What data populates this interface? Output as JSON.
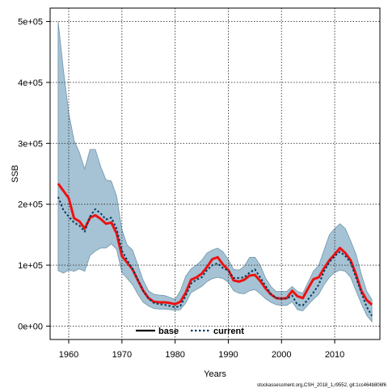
{
  "chart_data": {
    "type": "line",
    "title": "",
    "xlabel": "Years",
    "ylabel": "SSB",
    "xlim": [
      1956.5,
      2018.5
    ],
    "ylim": [
      -22000,
      522000
    ],
    "grid": true,
    "x_ticks": [
      1960,
      1970,
      1980,
      1990,
      2000,
      2010
    ],
    "x_tick_labels": [
      "1960",
      "1970",
      "1980",
      "1990",
      "2000",
      "2010"
    ],
    "y_ticks": [
      0,
      100000,
      200000,
      300000,
      400000,
      500000
    ],
    "y_tick_labels": [
      "0e+00",
      "1e+05",
      "2e+05",
      "3e+05",
      "4e+05",
      "5e+05"
    ],
    "legend": {
      "position": "bottom-center",
      "entries": [
        {
          "label": "base",
          "color": "#000000",
          "style": "solid"
        },
        {
          "label": "current",
          "color": "#0a3a5c",
          "style": "dotted"
        }
      ]
    },
    "x": [
      1958,
      1959,
      1960,
      1961,
      1962,
      1963,
      1964,
      1965,
      1966,
      1967,
      1968,
      1969,
      1970,
      1971,
      1972,
      1973,
      1974,
      1975,
      1976,
      1977,
      1978,
      1979,
      1980,
      1981,
      1982,
      1983,
      1984,
      1985,
      1986,
      1987,
      1988,
      1989,
      1990,
      1991,
      1992,
      1993,
      1994,
      1995,
      1996,
      1997,
      1998,
      1999,
      2000,
      2001,
      2002,
      2003,
      2004,
      2005,
      2006,
      2007,
      2008,
      2009,
      2010,
      2011,
      2012,
      2013,
      2014,
      2015,
      2016,
      2017
    ],
    "series": [
      {
        "name": "base",
        "style": "solid",
        "color": "#ee1111",
        "values": [
          234000,
          222000,
          210000,
          177000,
          172000,
          160000,
          178000,
          182000,
          176000,
          168000,
          170000,
          152000,
          115000,
          104000,
          93000,
          75000,
          58000,
          46000,
          40000,
          39000,
          39000,
          38000,
          36000,
          40000,
          55000,
          76000,
          80000,
          86000,
          97000,
          110000,
          113000,
          101000,
          92000,
          75000,
          73000,
          76000,
          83000,
          84000,
          74000,
          62000,
          52000,
          46000,
          45000,
          46000,
          58000,
          49000,
          46000,
          62000,
          77000,
          80000,
          95000,
          108000,
          118000,
          128000,
          120000,
          108000,
          85000,
          58000,
          43000,
          35000
        ]
      },
      {
        "name": "current",
        "style": "dotted",
        "color": "#0a3a5c",
        "values": [
          212000,
          190000,
          180000,
          170000,
          165000,
          155000,
          180000,
          192000,
          185000,
          175000,
          178000,
          160000,
          124000,
          108000,
          94000,
          76000,
          58000,
          45000,
          38000,
          36000,
          35000,
          33000,
          31000,
          33000,
          50000,
          70000,
          76000,
          80000,
          92000,
          100000,
          103000,
          95000,
          91000,
          79000,
          79000,
          80000,
          88000,
          93000,
          80000,
          66000,
          53000,
          46000,
          45000,
          45000,
          50000,
          35000,
          34000,
          44000,
          55000,
          68000,
          90000,
          105000,
          115000,
          122000,
          115000,
          104000,
          80000,
          55000,
          32000,
          17000
        ]
      }
    ],
    "confidence_band": {
      "color": "#a5c3d4",
      "upper": [
        500000,
        420000,
        350000,
        305000,
        285000,
        258000,
        290000,
        290000,
        262000,
        240000,
        238000,
        213000,
        158000,
        133000,
        125000,
        100000,
        75000,
        58000,
        52000,
        51000,
        50000,
        47000,
        44000,
        58000,
        82000,
        94000,
        100000,
        108000,
        120000,
        125000,
        128000,
        122000,
        109000,
        93000,
        92000,
        98000,
        113000,
        113000,
        100000,
        79000,
        65000,
        57000,
        57000,
        57000,
        65000,
        57000,
        54000,
        72000,
        90000,
        100000,
        125000,
        150000,
        160000,
        168000,
        160000,
        140000,
        118000,
        85000,
        58000,
        43000
      ],
      "lower": [
        91000,
        87000,
        92000,
        90000,
        94000,
        90000,
        116000,
        123000,
        128000,
        128000,
        135000,
        126000,
        88000,
        78000,
        68000,
        52000,
        39000,
        33000,
        29000,
        28000,
        28000,
        27000,
        26000,
        27000,
        38000,
        55000,
        60000,
        65000,
        73000,
        78000,
        80000,
        78000,
        72000,
        58000,
        54000,
        53000,
        58000,
        60000,
        53000,
        45000,
        39000,
        35000,
        34000,
        34000,
        40000,
        27000,
        25000,
        35000,
        44000,
        52000,
        68000,
        80000,
        88000,
        92000,
        90000,
        80000,
        58000,
        37000,
        18000,
        7000
      ]
    }
  },
  "footnote": "stockassessment.org,CSH_2018_1,r9552, git:1cc464b806f6"
}
